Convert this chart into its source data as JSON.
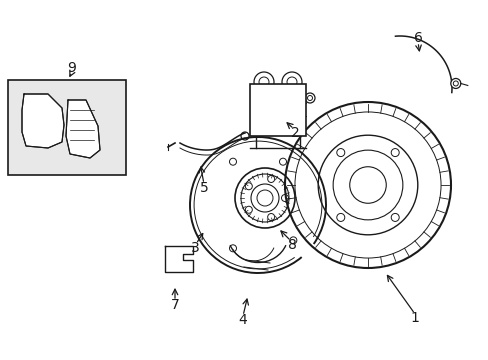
{
  "background_color": "#ffffff",
  "line_color": "#1a1a1a",
  "figsize": [
    4.89,
    3.6
  ],
  "dpi": 100,
  "xlim": [
    0,
    489
  ],
  "ylim": [
    0,
    360
  ]
}
